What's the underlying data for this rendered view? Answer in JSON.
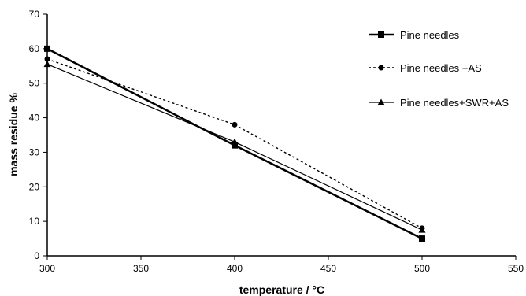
{
  "chart_data": {
    "type": "line",
    "xlabel": "temperature / °C",
    "ylabel": "mass residue %",
    "xlim": [
      300,
      550
    ],
    "ylim": [
      0,
      70
    ],
    "xticks": [
      300,
      350,
      400,
      450,
      500,
      550
    ],
    "yticks": [
      0,
      10,
      20,
      30,
      40,
      50,
      60,
      70
    ],
    "grid": false,
    "legend_position": "right",
    "series": [
      {
        "name": "Pine needles",
        "x": [
          300,
          400,
          500
        ],
        "y": [
          60,
          32,
          5
        ],
        "marker": "square",
        "line_style": "solid",
        "line_weight": "thick",
        "color": "#000000"
      },
      {
        "name": "Pine needles +AS",
        "x": [
          300,
          400,
          500
        ],
        "y": [
          57,
          38,
          8
        ],
        "marker": "circle",
        "line_style": "dotted",
        "line_weight": "normal",
        "color": "#000000"
      },
      {
        "name": "Pine needles+SWR+AS",
        "x": [
          300,
          400,
          500
        ],
        "y": [
          55.5,
          33,
          7.5
        ],
        "marker": "triangle",
        "line_style": "solid",
        "line_weight": "thin",
        "color": "#000000"
      }
    ]
  }
}
